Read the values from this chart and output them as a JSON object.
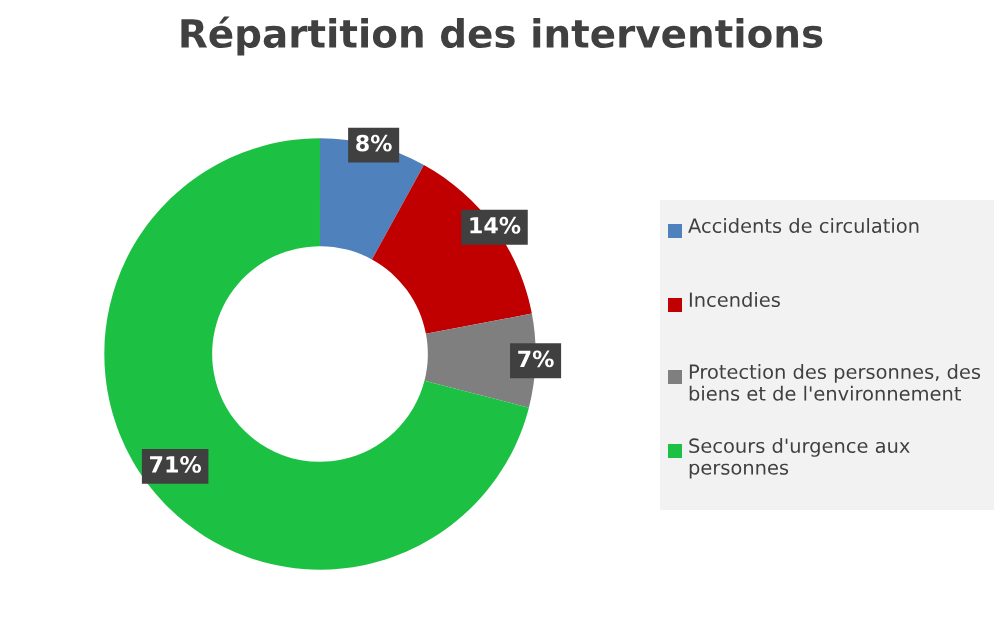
{
  "chart_data": {
    "type": "donut",
    "title": "Répartition des interventions",
    "categories": [
      "Accidents de circulation",
      "Incendies",
      "Protection des personnes, des biens et de l'environnement",
      "Secours d'urgence aux personnes"
    ],
    "values": [
      8,
      14,
      7,
      71
    ],
    "colors": [
      "#4f81bd",
      "#c00000",
      "#7f7f7f",
      "#1cc144"
    ],
    "value_labels": [
      "8%",
      "14%",
      "7%",
      "71%"
    ],
    "legend": "right"
  }
}
